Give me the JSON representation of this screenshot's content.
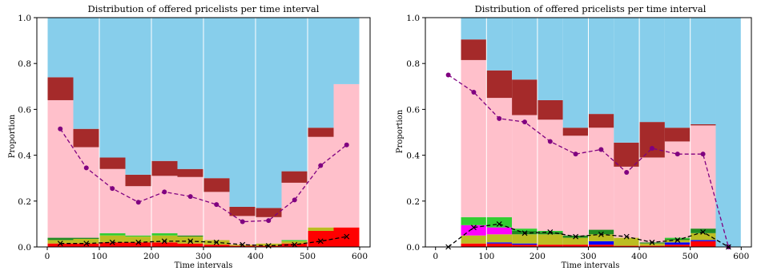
{
  "colors": {
    "sky": "#87ceeb",
    "brown": "#a52a2a",
    "pink": "#ffc0cb",
    "red": "#ff0000",
    "blue": "#0000ff",
    "magenta": "#ff00ff",
    "olive": "#bcbd22",
    "green": "#32cd32",
    "darkgreen": "#228b22",
    "purple": "#800080",
    "black": "#000000"
  },
  "chart_data": [
    {
      "type": "bar",
      "stacked": true,
      "title": "Distribution of offered pricelists per time interval",
      "xlabel": "Time intervals",
      "ylabel": "Proportion",
      "xlim": [
        -20,
        620
      ],
      "ylim": [
        0,
        1.0
      ],
      "xticks": [
        0,
        100,
        200,
        300,
        400,
        500,
        600
      ],
      "yticks": [
        0.0,
        0.2,
        0.4,
        0.6,
        0.8,
        1.0
      ],
      "ytick_labels": [
        "0.0",
        "0.2",
        "0.4",
        "0.6",
        "0.8",
        "1.0"
      ],
      "grid": "vertical",
      "bar_x_start": [
        0,
        50,
        100,
        150,
        200,
        250,
        300,
        350,
        400,
        450,
        500,
        550
      ],
      "bar_width": 50,
      "stacks": [
        [
          [
            "red",
            0.015
          ],
          [
            "olive",
            0.015
          ],
          [
            "darkgreen",
            0.01
          ],
          [
            "pink",
            0.6
          ],
          [
            "brown",
            0.1
          ],
          [
            "sky",
            0.26
          ]
        ],
        [
          [
            "red",
            0.015
          ],
          [
            "olive",
            0.02
          ],
          [
            "darkgreen",
            0.005
          ],
          [
            "pink",
            0.395
          ],
          [
            "brown",
            0.08
          ],
          [
            "sky",
            0.485
          ]
        ],
        [
          [
            "red",
            0.02
          ],
          [
            "olive",
            0.03
          ],
          [
            "green",
            0.01
          ],
          [
            "pink",
            0.28
          ],
          [
            "brown",
            0.05
          ],
          [
            "sky",
            0.61
          ]
        ],
        [
          [
            "red",
            0.02
          ],
          [
            "olive",
            0.025
          ],
          [
            "green",
            0.005
          ],
          [
            "pink",
            0.215
          ],
          [
            "brown",
            0.05
          ],
          [
            "sky",
            0.685
          ]
        ],
        [
          [
            "red",
            0.02
          ],
          [
            "olive",
            0.03
          ],
          [
            "green",
            0.01
          ],
          [
            "pink",
            0.25
          ],
          [
            "brown",
            0.065
          ],
          [
            "sky",
            0.625
          ]
        ],
        [
          [
            "red",
            0.015
          ],
          [
            "olive",
            0.03
          ],
          [
            "darkgreen",
            0.005
          ],
          [
            "pink",
            0.255
          ],
          [
            "brown",
            0.035
          ],
          [
            "sky",
            0.66
          ]
        ],
        [
          [
            "red",
            0.01
          ],
          [
            "olive",
            0.02
          ],
          [
            "pink",
            0.21
          ],
          [
            "brown",
            0.06
          ],
          [
            "sky",
            0.7
          ]
        ],
        [
          [
            "red",
            0.005
          ],
          [
            "olive",
            0.005
          ],
          [
            "pink",
            0.125
          ],
          [
            "brown",
            0.04
          ],
          [
            "sky",
            0.825
          ]
        ],
        [
          [
            "red",
            0.005
          ],
          [
            "olive",
            0.01
          ],
          [
            "pink",
            0.115
          ],
          [
            "brown",
            0.04
          ],
          [
            "sky",
            0.83
          ]
        ],
        [
          [
            "red",
            0.015
          ],
          [
            "olive",
            0.01
          ],
          [
            "green",
            0.005
          ],
          [
            "pink",
            0.25
          ],
          [
            "brown",
            0.05
          ],
          [
            "sky",
            0.67
          ]
        ],
        [
          [
            "red",
            0.07
          ],
          [
            "olive",
            0.015
          ],
          [
            "pink",
            0.395
          ],
          [
            "brown",
            0.04
          ],
          [
            "sky",
            0.48
          ]
        ],
        [
          [
            "red",
            0.085
          ],
          [
            "pink",
            0.625
          ],
          [
            "sky",
            0.29
          ]
        ]
      ],
      "lines": [
        {
          "color": "purple",
          "marker": "o",
          "x": [
            25,
            75,
            125,
            175,
            225,
            275,
            325,
            375,
            425,
            475,
            525,
            575
          ],
          "y": [
            0.515,
            0.345,
            0.255,
            0.195,
            0.24,
            0.22,
            0.185,
            0.11,
            0.115,
            0.205,
            0.355,
            0.445
          ]
        },
        {
          "color": "black",
          "marker": "x",
          "x": [
            25,
            75,
            125,
            175,
            225,
            275,
            325,
            375,
            425,
            475,
            525,
            575
          ],
          "y": [
            0.015,
            0.015,
            0.02,
            0.02,
            0.025,
            0.025,
            0.02,
            0.01,
            0.005,
            0.01,
            0.025,
            0.045
          ]
        }
      ]
    },
    {
      "type": "bar",
      "stacked": true,
      "title": "Distribution of offered pricelists per time interval",
      "xlabel": "Time intervals",
      "ylabel": "Proportion",
      "xlim": [
        -20,
        620
      ],
      "ylim": [
        0,
        1.0
      ],
      "xticks": [
        0,
        100,
        200,
        300,
        400,
        500,
        600
      ],
      "yticks": [
        0.0,
        0.2,
        0.4,
        0.6,
        0.8,
        1.0
      ],
      "ytick_labels": [
        "0.0",
        "0.2",
        "0.4",
        "0.6",
        "0.8",
        "1.0"
      ],
      "grid": "vertical",
      "bar_x_start": [
        0,
        50,
        100,
        150,
        200,
        250,
        300,
        350,
        400,
        450,
        500,
        550
      ],
      "bar_width": 50,
      "stacks": [
        [
          [
            "sky",
            0.0
          ]
        ],
        [
          [
            "red",
            0.015
          ],
          [
            "olive",
            0.035
          ],
          [
            "magenta",
            0.045
          ],
          [
            "green",
            0.035
          ],
          [
            "pink",
            0.685
          ],
          [
            "brown",
            0.09
          ],
          [
            "sky",
            0.095
          ]
        ],
        [
          [
            "red",
            0.015
          ],
          [
            "blue",
            0.005
          ],
          [
            "olive",
            0.035
          ],
          [
            "magenta",
            0.03
          ],
          [
            "green",
            0.045
          ],
          [
            "pink",
            0.52
          ],
          [
            "brown",
            0.12
          ],
          [
            "sky",
            0.23
          ]
        ],
        [
          [
            "red",
            0.01
          ],
          [
            "blue",
            0.005
          ],
          [
            "olive",
            0.04
          ],
          [
            "darkgreen",
            0.015
          ],
          [
            "green",
            0.01
          ],
          [
            "pink",
            0.495
          ],
          [
            "brown",
            0.155
          ],
          [
            "sky",
            0.27
          ]
        ],
        [
          [
            "red",
            0.01
          ],
          [
            "olive",
            0.045
          ],
          [
            "darkgreen",
            0.01
          ],
          [
            "green",
            0.005
          ],
          [
            "pink",
            0.485
          ],
          [
            "brown",
            0.085
          ],
          [
            "sky",
            0.36
          ]
        ],
        [
          [
            "red",
            0.01
          ],
          [
            "olive",
            0.03
          ],
          [
            "darkgreen",
            0.01
          ],
          [
            "pink",
            0.435
          ],
          [
            "brown",
            0.035
          ],
          [
            "sky",
            0.48
          ]
        ],
        [
          [
            "red",
            0.01
          ],
          [
            "blue",
            0.015
          ],
          [
            "olive",
            0.03
          ],
          [
            "darkgreen",
            0.02
          ],
          [
            "pink",
            0.445
          ],
          [
            "brown",
            0.06
          ],
          [
            "sky",
            0.42
          ]
        ],
        [
          [
            "red",
            0.005
          ],
          [
            "olive",
            0.035
          ],
          [
            "pink",
            0.31
          ],
          [
            "brown",
            0.105
          ],
          [
            "sky",
            0.545
          ]
        ],
        [
          [
            "red",
            0.005
          ],
          [
            "olive",
            0.01
          ],
          [
            "darkgreen",
            0.005
          ],
          [
            "pink",
            0.37
          ],
          [
            "brown",
            0.155
          ],
          [
            "sky",
            0.455
          ]
        ],
        [
          [
            "red",
            0.01
          ],
          [
            "blue",
            0.01
          ],
          [
            "olive",
            0.01
          ],
          [
            "darkgreen",
            0.005
          ],
          [
            "green",
            0.005
          ],
          [
            "pink",
            0.42
          ],
          [
            "brown",
            0.06
          ],
          [
            "sky",
            0.48
          ]
        ],
        [
          [
            "red",
            0.025
          ],
          [
            "blue",
            0.005
          ],
          [
            "olive",
            0.03
          ],
          [
            "darkgreen",
            0.02
          ],
          [
            "pink",
            0.45
          ],
          [
            "brown",
            0.005
          ],
          [
            "sky",
            0.465
          ]
        ],
        [
          [
            "sky",
            1.0
          ]
        ]
      ],
      "lines": [
        {
          "color": "purple",
          "marker": "o",
          "x": [
            25,
            75,
            125,
            175,
            225,
            275,
            325,
            375,
            425,
            475,
            525,
            575
          ],
          "y": [
            0.75,
            0.675,
            0.56,
            0.545,
            0.46,
            0.405,
            0.425,
            0.325,
            0.43,
            0.405,
            0.405,
            0.0
          ]
        },
        {
          "color": "black",
          "marker": "x",
          "x": [
            25,
            75,
            125,
            175,
            225,
            275,
            325,
            375,
            425,
            475,
            525,
            575
          ],
          "y": [
            0.0,
            0.085,
            0.1,
            0.06,
            0.065,
            0.045,
            0.055,
            0.045,
            0.02,
            0.03,
            0.065,
            0.0
          ]
        }
      ]
    }
  ]
}
